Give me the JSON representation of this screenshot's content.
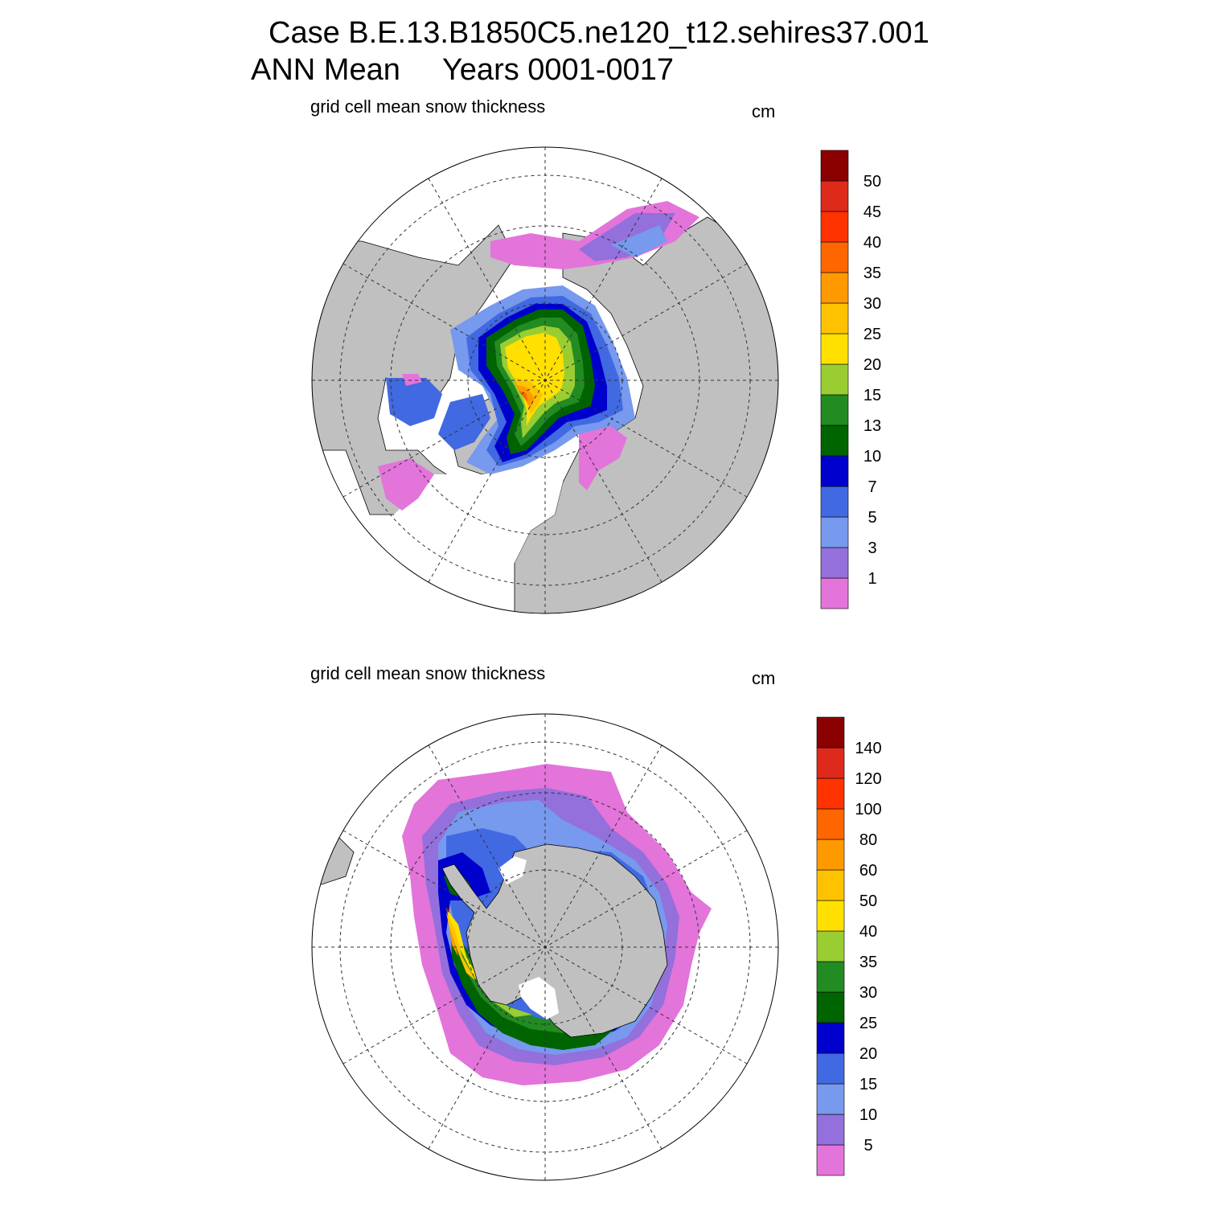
{
  "figure": {
    "title_line1": "Case B.E.13.B1850C5.ne120_t12.sehires37.001",
    "title_line2": "ANN Mean     Years 0001-0017"
  },
  "panels": [
    {
      "hemisphere": "north",
      "title": "grid cell mean snow thickness",
      "units": "cm",
      "colorbar": {
        "labels": [
          "1",
          "3",
          "5",
          "7",
          "10",
          "13",
          "15",
          "20",
          "25",
          "30",
          "35",
          "40",
          "45",
          "50"
        ],
        "colors": [
          "#e374da",
          "#9370db",
          "#7799ee",
          "#4169e1",
          "#0000cd",
          "#006400",
          "#228b22",
          "#9acd32",
          "#ffe000",
          "#ffc200",
          "#ff9900",
          "#ff6600",
          "#ff3300",
          "#dd2a1a",
          "#8b0000"
        ]
      }
    },
    {
      "hemisphere": "south",
      "title": "grid cell mean snow thickness",
      "units": "cm",
      "colorbar": {
        "labels": [
          "5",
          "10",
          "15",
          "20",
          "25",
          "30",
          "35",
          "40",
          "50",
          "60",
          "80",
          "100",
          "120",
          "140"
        ],
        "colors": [
          "#e374da",
          "#9370db",
          "#7799ee",
          "#4169e1",
          "#0000cd",
          "#006400",
          "#228b22",
          "#9acd32",
          "#ffe000",
          "#ffc200",
          "#ff9900",
          "#ff6600",
          "#ff3300",
          "#dd2a1a",
          "#8b0000"
        ]
      }
    }
  ],
  "style": {
    "land_color": "#c0c0c0",
    "ocean_color": "#ffffff"
  }
}
